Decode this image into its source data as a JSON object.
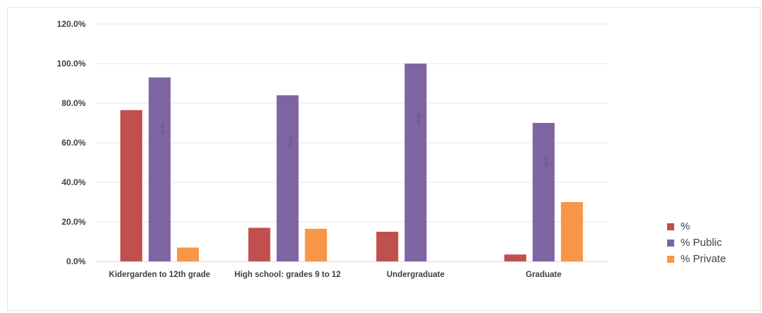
{
  "chart_data": {
    "type": "bar",
    "categories": [
      "Kidergarden to 12th grade",
      "High school: grades 9 to 12",
      "Undergraduate",
      "Graduate"
    ],
    "series": [
      {
        "name": "%",
        "color": "#c0504d",
        "values": [
          76.5,
          17.0,
          15.0,
          3.5
        ]
      },
      {
        "name": "% Public",
        "color": "#8064a2",
        "values": [
          93.0,
          84.0,
          100.0,
          70.0
        ]
      },
      {
        "name": "% Private",
        "color": "#f79646",
        "values": [
          7.0,
          16.5,
          null,
          30.0
        ]
      }
    ],
    "y_ticks": [
      "0.0%",
      "20.0%",
      "40.0%",
      "60.0%",
      "80.0%",
      "100.0%",
      "120.0%"
    ],
    "ylim": [
      0,
      120
    ],
    "grid": true,
    "legend_position": "right",
    "data_labels_public": [
      "93.0%",
      "84.0%",
      "100.0%",
      "70.0%"
    ]
  }
}
